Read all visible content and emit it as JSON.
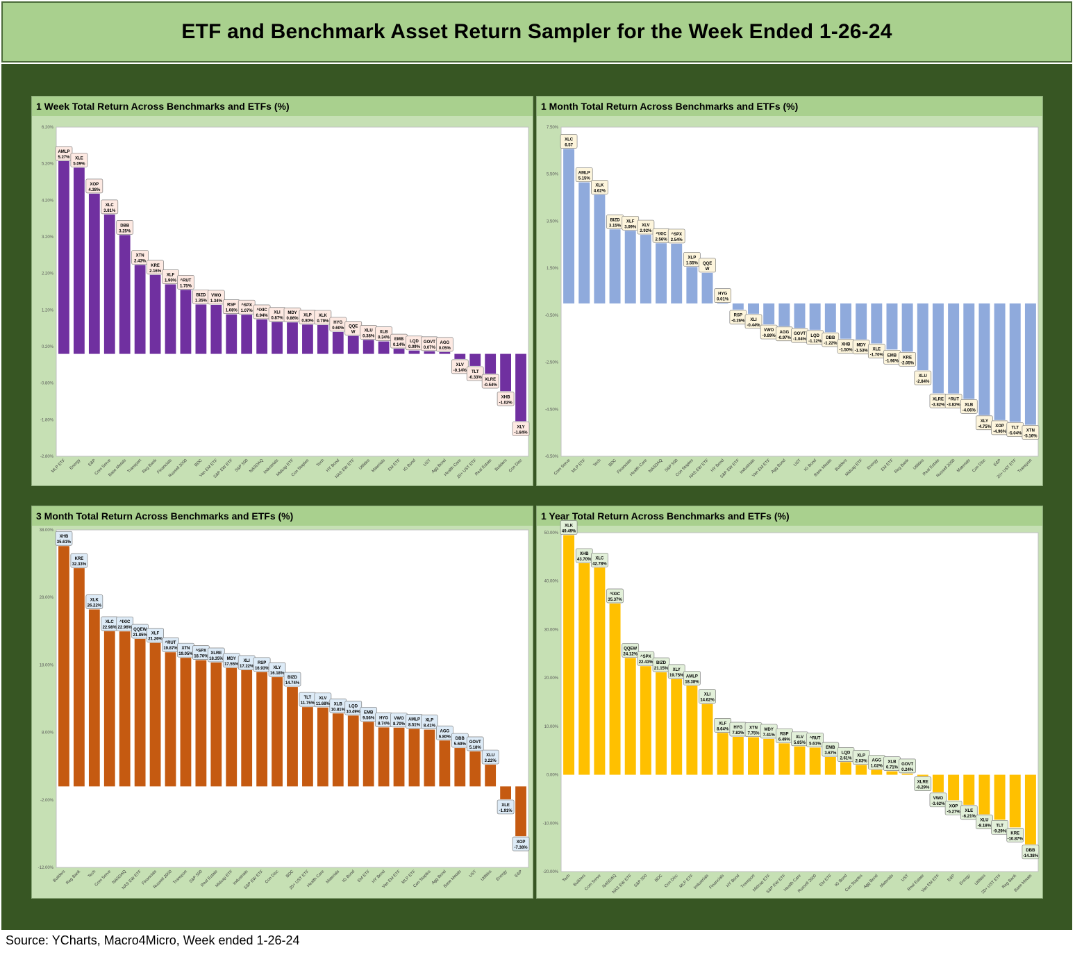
{
  "page": {
    "title": "ETF and Benchmark Asset Return Sampler for the Week Ended 1-26-24",
    "source": "Source: YCharts, Macro4Micro, Week ended 1-26-24"
  },
  "theme": {
    "frame_color": "#375623",
    "header_color": "#a9d08e",
    "panel_title_bg": "#a9d08e",
    "panel_bg": "#c6e0b4"
  },
  "chart_data": [
    {
      "type": "bar",
      "title": "1 Week Total Return Across Benchmarks and ETFs (%)",
      "bar_color": "#7030a0",
      "label_bg": "#fde9e2",
      "ylim": [
        -2.8,
        6.2
      ],
      "yticks": [
        6.2,
        5.2,
        4.2,
        3.2,
        2.2,
        1.2,
        0.2,
        -0.8,
        -1.8,
        -2.8
      ],
      "ytick_labels": [
        "6.20%",
        "5.20%",
        "4.20%",
        "3.20%",
        "2.20%",
        "1.20%",
        "0.20%",
        "-0.80%",
        "-1.80%",
        "-2.80%"
      ],
      "categories": [
        "MLP ETF",
        "Energy",
        "E&P",
        "Com Serve",
        "Base Metals",
        "Transport",
        "Reg Bank",
        "Financials",
        "Russell 2000",
        "BDC",
        "Van EM ETF",
        "S&P EW ETF",
        "S&P 500",
        "NASDAQ",
        "Industrials",
        "Midcap ETF",
        "Con Staples",
        "Tech",
        "HY Bond",
        "NAS EW ETF",
        "Utilities",
        "Materials",
        "EM ETF",
        "IG Bond",
        "UST",
        "Agg Bond",
        "Health Care",
        "20+ UST ETF",
        "Real Estate",
        "Builders",
        "Con Disc"
      ],
      "tickers": [
        "AMLP",
        "XLE",
        "XOP",
        "XLC",
        "DBB",
        "XTN",
        "KRE",
        "XLF",
        "^RUT",
        "BIZD",
        "VWO",
        "RSP",
        "^SPX",
        "^IXIC",
        "XLI",
        "MDY",
        "XLP",
        "XLK",
        "HYG",
        "QQE\nW",
        "XLU",
        "XLB",
        "EMB",
        "LQD",
        "GOVT",
        "AGG",
        "XLV",
        "TLT",
        "XLRE",
        "XHB",
        "XLY"
      ],
      "values": [
        5.27,
        5.09,
        4.38,
        3.81,
        3.25,
        2.43,
        2.16,
        1.9,
        1.75,
        1.35,
        1.34,
        1.08,
        1.07,
        0.94,
        0.87,
        0.86,
        0.8,
        0.79,
        0.6,
        0.49,
        0.38,
        0.34,
        0.14,
        0.09,
        0.07,
        0.05,
        -0.14,
        -0.33,
        -0.54,
        -1.02,
        -1.84
      ],
      "value_labels": [
        "5.27%",
        "5.09%",
        "4.38%",
        "3.81%",
        "3.25%",
        "2.43%",
        "2.16%",
        "1.90%",
        "1.75%",
        "1.35%",
        "1.34%",
        "1.08%",
        "1.07%",
        "0.94%",
        "0.87%",
        "0.86%",
        "0.80%",
        "0.79%",
        "0.60%",
        "",
        "0.38%",
        "0.34%",
        "0.14%",
        "0.09%",
        "0.07%",
        "0.05%",
        "-0.14%",
        "-0.33%",
        "-0.54%",
        "-1.02%",
        "-1.84%"
      ]
    },
    {
      "type": "bar",
      "title": "1 Month Total Return Across Benchmarks and ETFs (%)",
      "bar_color": "#8faadc",
      "label_bg": "#fdf5dc",
      "ylim": [
        -6.5,
        7.5
      ],
      "yticks": [
        7.5,
        5.5,
        3.5,
        1.5,
        -0.5,
        -2.5,
        -4.5,
        -6.5
      ],
      "ytick_labels": [
        "7.50%",
        "5.50%",
        "3.50%",
        "1.50%",
        "-0.50%",
        "-2.50%",
        "-4.50%",
        "-6.50%"
      ],
      "categories": [
        "Com Serve",
        "MLP ETF",
        "Tech",
        "BDC",
        "Financials",
        "Health Care",
        "NASDAQ",
        "S&P 500",
        "Con Staples",
        "NAS EW ETF",
        "HY Bond",
        "S&P EW ETF",
        "Industrials",
        "Van EM ETF",
        "Agg Bond",
        "UST",
        "IG Bond",
        "Base Metals",
        "Builders",
        "Midcap ETF",
        "Energy",
        "EM ETF",
        "Reg Bank",
        "Utilities",
        "Real Estate",
        "Russell 2000",
        "Materials",
        "Con Disc",
        "E&P",
        "20+ UST ETF",
        "Transport"
      ],
      "tickers": [
        "XLC",
        "AMLP",
        "XLK",
        "BIZD",
        "XLF",
        "XLV",
        "^IXIC",
        "^SPX",
        "XLP",
        "QQE\nW",
        "HYG",
        "RSP",
        "XLI",
        "VWO",
        "AGG",
        "GOVT",
        "LQD",
        "DBB",
        "XHB",
        "MDY",
        "XLE",
        "EMB",
        "KRE",
        "XLU",
        "XLRE",
        "^RUT",
        "XLB",
        "XLY",
        "XOP",
        "TLT",
        "XTN"
      ],
      "values": [
        6.57,
        5.15,
        4.62,
        3.15,
        3.09,
        2.92,
        2.56,
        2.54,
        1.55,
        1.3,
        0.01,
        -0.26,
        -0.44,
        -0.89,
        -0.97,
        -1.04,
        -1.12,
        -1.22,
        -1.5,
        -1.53,
        -1.7,
        -1.96,
        -2.05,
        -2.84,
        -3.82,
        -3.83,
        -4.06,
        -4.75,
        -4.96,
        -5.04,
        -5.16
      ],
      "value_labels": [
        "6.57",
        "5.15%",
        "4.62%",
        "3.15%",
        "3.09%",
        "2.92%",
        "2.56%",
        "2.54%",
        "1.55%",
        "",
        "0.01%",
        "-0.26%",
        "-0.44%",
        "-0.89%",
        "-0.97%",
        "-1.04%",
        "-1.12%",
        "-1.22%",
        "-1.50%",
        "-1.53%",
        "-1.70%",
        "-1.96%",
        "-2.05%",
        "-2.84%",
        "-3.82%",
        "-3.83%",
        "-4.06%",
        "-4.75%",
        "-4.96%",
        "-5.04%",
        "-5.16%"
      ]
    },
    {
      "type": "bar",
      "title": "3 Month Total Return Across Benchmarks and ETFs (%)",
      "bar_color": "#c55a11",
      "label_bg": "#ddebf7",
      "ylim": [
        -12,
        38
      ],
      "yticks": [
        38,
        28,
        18,
        8,
        -2,
        -12
      ],
      "ytick_labels": [
        "38.00%",
        "28.00%",
        "18.00%",
        "8.00%",
        "-2.00%",
        "-12.00%"
      ],
      "categories": [
        "Builders",
        "Reg Bank",
        "Tech",
        "Com Serve",
        "NASDAQ",
        "NAS EW ETF",
        "Financials",
        "Russell 2000",
        "Transport",
        "S&P 500",
        "Real Estate",
        "Midcap ETF",
        "Industrials",
        "S&P EW ETF",
        "Con Disc",
        "BDC",
        "20+ UST ETF",
        "Health Care",
        "Materials",
        "IG Bond",
        "EM ETF",
        "HY Bond",
        "Van EM ETF",
        "MLP ETF",
        "Con Staples",
        "Agg Bond",
        "Base Metals",
        "UST",
        "Utilities",
        "Energy",
        "E&P"
      ],
      "tickers": [
        "XHB",
        "KRE",
        "XLK",
        "XLC",
        "^IXIC",
        "QQEW",
        "XLF",
        "^RUT",
        "XTN",
        "^SPX",
        "XLRE",
        "MDY",
        "XLI",
        "RSP",
        "XLY",
        "BIZD",
        "TLT",
        "XLV",
        "XLB",
        "LQD",
        "EMB",
        "HYG",
        "VWO",
        "AMLP",
        "XLP",
        "AGG",
        "DBB",
        "GOVT",
        "XLU",
        "XLE",
        "XOP"
      ],
      "values": [
        35.61,
        32.33,
        26.22,
        22.98,
        22.96,
        21.85,
        21.26,
        19.87,
        19.05,
        18.7,
        18.35,
        17.55,
        17.22,
        16.93,
        16.18,
        14.74,
        11.75,
        11.68,
        10.81,
        10.49,
        9.56,
        8.74,
        8.7,
        8.51,
        8.41,
        6.8,
        5.69,
        5.18,
        3.22,
        -1.91,
        -7.38
      ],
      "value_labels": [
        "35.61%",
        "32.33%",
        "26.22%",
        "22.98%",
        "22.96%",
        "21.85%",
        "21.26%",
        "19.87%",
        "19.05%",
        "18.70%",
        "18.35%",
        "17.55%",
        "17.22%",
        "16.93%",
        "16.18%",
        "14.74%",
        "11.75%",
        "11.68%",
        "10.81%",
        "10.49%",
        "9.56%",
        "8.74%",
        "8.70%",
        "8.51%",
        "8.41%",
        "6.80%",
        "5.69%",
        "5.18%",
        "3.22%",
        "-1.91%",
        "-7.38%"
      ]
    },
    {
      "type": "bar",
      "title": "1 Year Total Return Across Benchmarks and ETFs (%)",
      "bar_color": "#ffc000",
      "label_bg": "#e2f0d9",
      "ylim": [
        -20,
        50
      ],
      "yticks": [
        50,
        40,
        30,
        20,
        10,
        0,
        -10,
        -20
      ],
      "ytick_labels": [
        "50.00%",
        "40.00%",
        "30.00%",
        "20.00%",
        "10.00%",
        "0.00%",
        "-10.00%",
        "-20.00%"
      ],
      "categories": [
        "Tech",
        "Builders",
        "Com Serve",
        "NASDAQ",
        "NAS EW ETF",
        "S&P 500",
        "BDC",
        "Con Disc",
        "MLP ETF",
        "Industrials",
        "Financials",
        "HY Bond",
        "Transport",
        "Midcap ETF",
        "S&P EW ETF",
        "Health Care",
        "Russell 2000",
        "EM ETF",
        "IG Bond",
        "Con Staples",
        "Agg Bond",
        "Materials",
        "UST",
        "Real Estate",
        "Van EM ETF",
        "E&P",
        "Energy",
        "Utilities",
        "20+ UST ETF",
        "Reg Bank",
        "Base Metals"
      ],
      "tickers": [
        "XLK",
        "XHB",
        "XLC",
        "^IXIC",
        "QQEW",
        "^SPX",
        "BIZD",
        "XLY",
        "AMLP",
        "XLI",
        "XLF",
        "HYG",
        "XTN",
        "MDY",
        "RSP",
        "XLV",
        "^RUT",
        "EMB",
        "LQD",
        "XLP",
        "AGG",
        "XLB",
        "GOVT",
        "XLRE",
        "VWO",
        "XOP",
        "XLE",
        "XLU",
        "TLT",
        "KRE",
        "DBB"
      ],
      "values": [
        49.49,
        43.7,
        42.78,
        35.37,
        24.12,
        22.43,
        21.15,
        19.75,
        18.38,
        14.62,
        8.64,
        7.83,
        7.75,
        7.41,
        6.49,
        5.85,
        5.61,
        3.67,
        2.61,
        2.03,
        1.02,
        0.71,
        0.24,
        -0.29,
        -3.62,
        -5.27,
        -6.21,
        -8.18,
        -9.29,
        -10.87,
        -14.38
      ],
      "value_labels": [
        "49.49%",
        "43.70%",
        "42.78%",
        "35.37%",
        "24.12%",
        "22.43%",
        "21.15%",
        "19.75%",
        "18.38%",
        "14.62%",
        "8.64%",
        "7.83%",
        "7.75%",
        "7.41%",
        "6.49%",
        "5.85%",
        "5.61%",
        "3.67%",
        "2.61%",
        "2.03%",
        "1.02%",
        "0.71%",
        "0.24%",
        "-0.29%",
        "-3.62%",
        "-5.27%",
        "-6.21%",
        "-8.18%",
        "-9.29%",
        "-10.87%",
        "-14.38%"
      ]
    }
  ]
}
